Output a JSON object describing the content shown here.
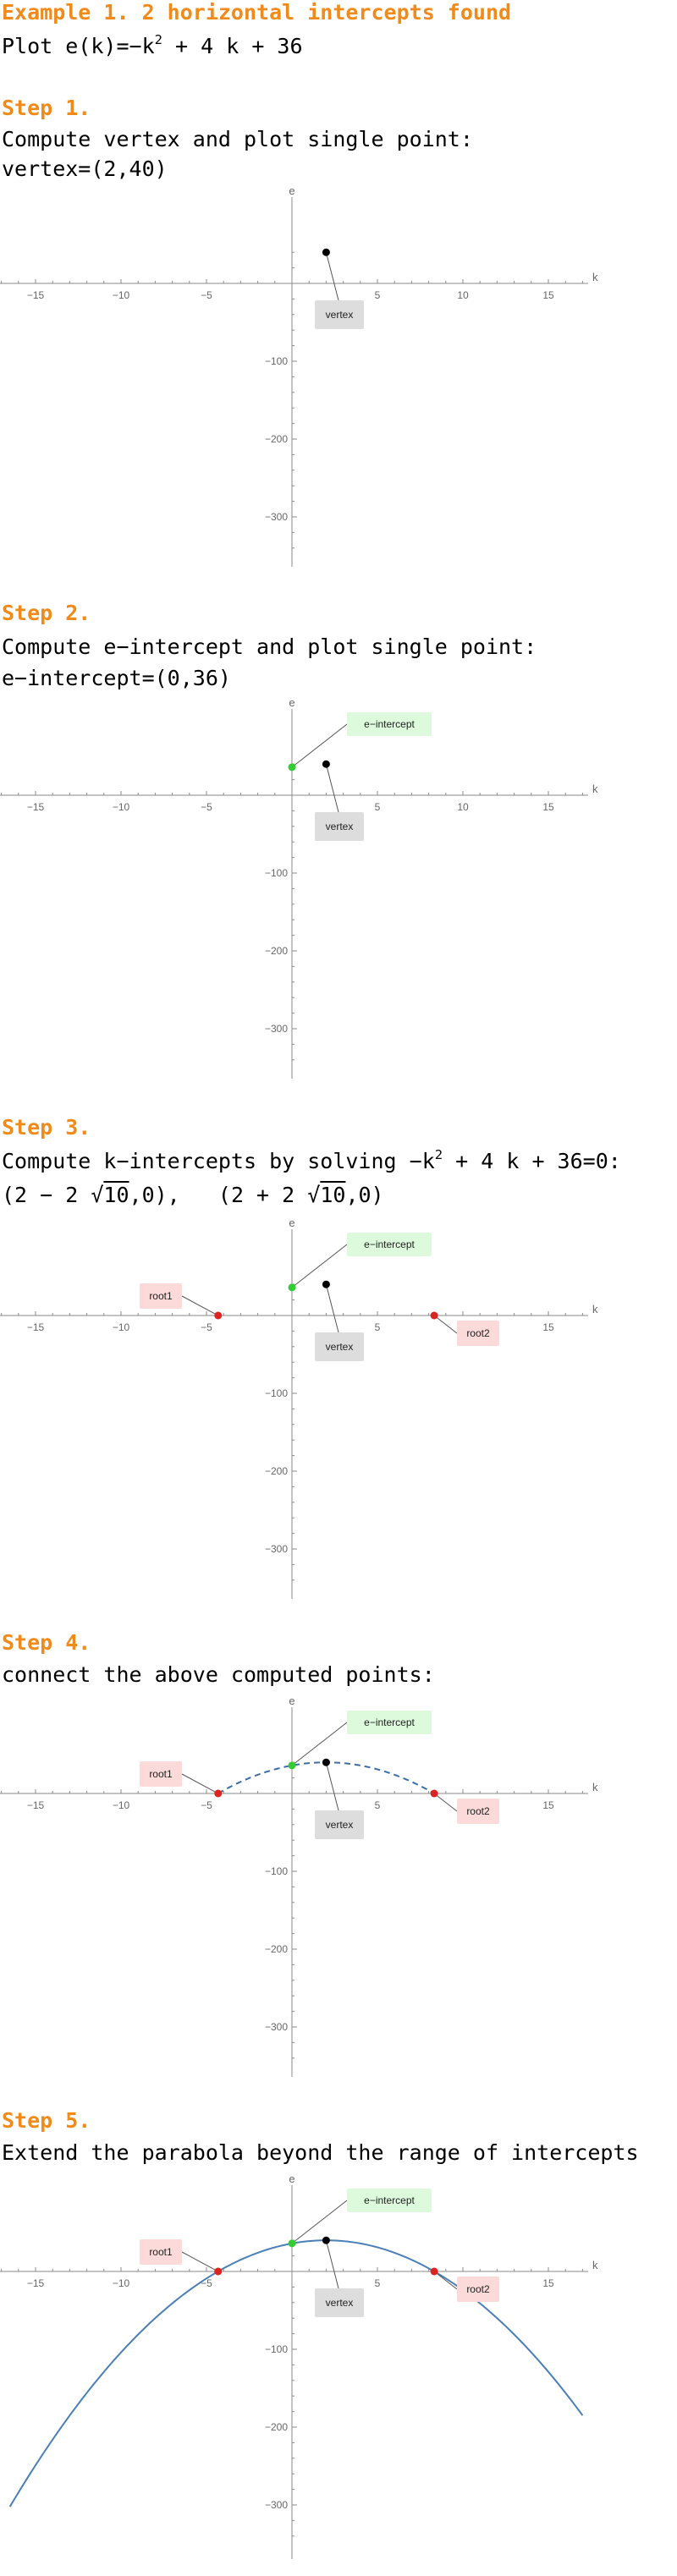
{
  "title": {
    "heading": "Example 1. 2 horizontal intercepts found",
    "plot_prefix": "Plot e(k)=−k",
    "plot_exp": "2",
    "plot_suffix": " + 4 k + 36"
  },
  "steps": [
    {
      "heading": "Step 1.",
      "line1": "Compute vertex and plot single point:",
      "line2": "vertex=(2,40)"
    },
    {
      "heading": "Step 2.",
      "line1": "Compute e−intercept and plot single point:",
      "line2": "e−intercept=(0,36)"
    },
    {
      "heading": "Step 3.",
      "line1_prefix": "Compute k−intercepts by solving −k",
      "line1_exp": "2",
      "line1_suffix": " + 4 k + 36=0:",
      "root1_a": "(2 − 2 √",
      "root1_rad": "10",
      "root1_b": ",0),",
      "root2_a": "(2 + 2 √",
      "root2_rad": "10",
      "root2_b": ",0)"
    },
    {
      "heading": "Step 4.",
      "line1": "connect the above computed points:"
    },
    {
      "heading": "Step 5.",
      "line1": "Extend the parabola beyond the range of intercepts"
    }
  ],
  "chart_data": [
    {
      "type": "scatter",
      "xlabel": "k",
      "ylabel": "e",
      "xlim": [
        -17,
        17
      ],
      "ylim": [
        -350,
        60
      ],
      "xticks": [
        -15,
        -10,
        -5,
        5,
        10,
        15
      ],
      "yticks": [
        -100,
        -200,
        -300
      ],
      "points": [
        {
          "name": "vertex",
          "label": "vertex",
          "x": 2,
          "y": 40,
          "color": "#000000",
          "label_bg": "#dddddd"
        }
      ]
    },
    {
      "type": "scatter",
      "xlabel": "k",
      "ylabel": "e",
      "xlim": [
        -17,
        17
      ],
      "ylim": [
        -350,
        60
      ],
      "xticks": [
        -15,
        -10,
        -5,
        5,
        10,
        15
      ],
      "yticks": [
        -100,
        -200,
        -300
      ],
      "points": [
        {
          "name": "vertex",
          "label": "vertex",
          "x": 2,
          "y": 40,
          "color": "#000000",
          "label_bg": "#dddddd"
        },
        {
          "name": "e-intercept",
          "label": "e−intercept",
          "x": 0,
          "y": 36,
          "color": "#33cc33",
          "label_bg": "#ddfadd"
        }
      ]
    },
    {
      "type": "scatter",
      "xlabel": "k",
      "ylabel": "e",
      "xlim": [
        -17,
        17
      ],
      "ylim": [
        -350,
        60
      ],
      "xticks": [
        -15,
        -10,
        -5,
        5,
        10,
        15
      ],
      "yticks": [
        -100,
        -200,
        -300
      ],
      "points": [
        {
          "name": "vertex",
          "label": "vertex",
          "x": 2,
          "y": 40,
          "color": "#000000",
          "label_bg": "#dddddd"
        },
        {
          "name": "e-intercept",
          "label": "e−intercept",
          "x": 0,
          "y": 36,
          "color": "#33cc33",
          "label_bg": "#ddfadd"
        },
        {
          "name": "root1",
          "label": "root1",
          "x": -4.32,
          "y": 0,
          "color": "#dd2222",
          "label_bg": "#fcdada"
        },
        {
          "name": "root2",
          "label": "root2",
          "x": 8.32,
          "y": 0,
          "color": "#dd2222",
          "label_bg": "#fcdada"
        }
      ]
    },
    {
      "type": "line",
      "xlabel": "k",
      "ylabel": "e",
      "xlim": [
        -17,
        17
      ],
      "ylim": [
        -350,
        60
      ],
      "xticks": [
        -15,
        -10,
        -5,
        5,
        10,
        15
      ],
      "yticks": [
        -100,
        -200,
        -300
      ],
      "curve": {
        "function": "e(k) = -k^2 + 4k + 36",
        "k_range": [
          -4.32,
          8.32
        ],
        "style": "dashed",
        "color": "#3a6ea5"
      },
      "points": [
        {
          "name": "vertex",
          "label": "vertex",
          "x": 2,
          "y": 40,
          "color": "#000000",
          "label_bg": "#dddddd"
        },
        {
          "name": "e-intercept",
          "label": "e−intercept",
          "x": 0,
          "y": 36,
          "color": "#33cc33",
          "label_bg": "#ddfadd"
        },
        {
          "name": "root1",
          "label": "root1",
          "x": -4.32,
          "y": 0,
          "color": "#dd2222",
          "label_bg": "#fcdada"
        },
        {
          "name": "root2",
          "label": "root2",
          "x": 8.32,
          "y": 0,
          "color": "#dd2222",
          "label_bg": "#fcdada"
        }
      ]
    },
    {
      "type": "line",
      "xlabel": "k",
      "ylabel": "e",
      "xlim": [
        -17,
        17
      ],
      "ylim": [
        -350,
        60
      ],
      "xticks": [
        -15,
        -10,
        -5,
        5,
        10,
        15
      ],
      "yticks": [
        -100,
        -200,
        -300
      ],
      "curve": {
        "function": "e(k) = -k^2 + 4k + 36",
        "k_range": [
          -16.5,
          17
        ],
        "style": "solid",
        "color": "#4a7fb8"
      },
      "points": [
        {
          "name": "vertex",
          "label": "vertex",
          "x": 2,
          "y": 40,
          "color": "#000000",
          "label_bg": "#dddddd"
        },
        {
          "name": "e-intercept",
          "label": "e−intercept",
          "x": 0,
          "y": 36,
          "color": "#33cc33",
          "label_bg": "#ddfadd"
        },
        {
          "name": "root1",
          "label": "root1",
          "x": -4.32,
          "y": 0,
          "color": "#dd2222",
          "label_bg": "#fcdada"
        },
        {
          "name": "root2",
          "label": "root2",
          "x": 8.32,
          "y": 0,
          "color": "#dd2222",
          "label_bg": "#fcdada"
        }
      ]
    }
  ]
}
